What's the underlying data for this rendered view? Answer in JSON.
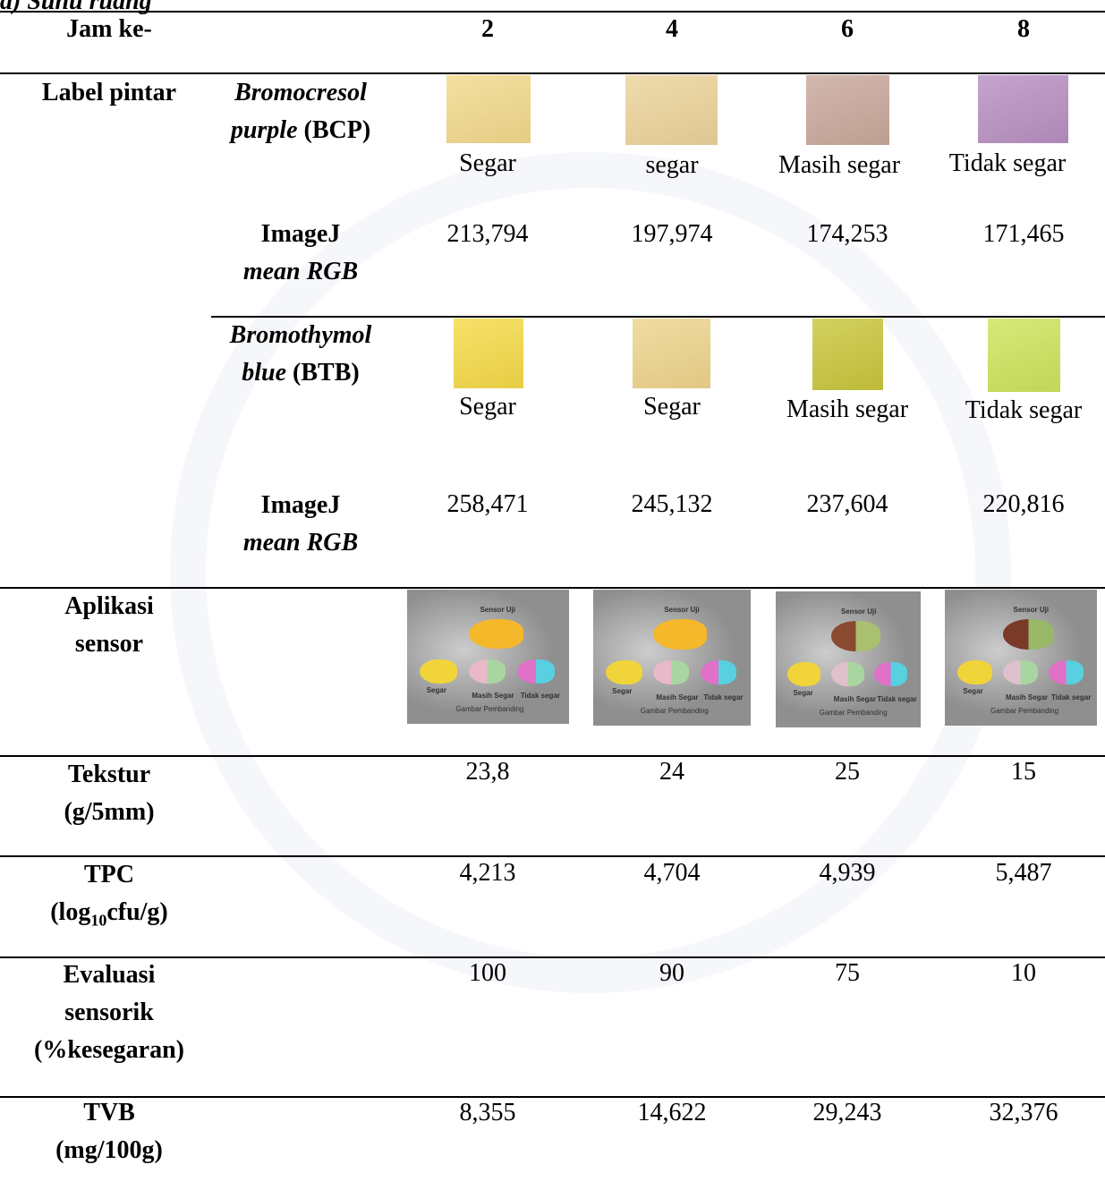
{
  "caption": "a) Suhu ruang",
  "header": {
    "label": "Jam ke-",
    "hours": [
      "2",
      "4",
      "6",
      "8"
    ]
  },
  "label_pintar": {
    "title": "Label pintar",
    "bcp": {
      "name_italic": "Bromocresol",
      "name_italic2": "purple",
      "abbr": "(BCP)",
      "swatch_colors": [
        "#f2d98c",
        "#ecd39a",
        "#c9a89b",
        "#b890c2"
      ],
      "status": [
        "Segar",
        "segar",
        "Masih segar",
        "Tidak segar"
      ],
      "imagej_label1": "ImageJ",
      "imagej_label2": "mean RGB",
      "imagej_values": [
        "213,794",
        "197,974",
        "174,253",
        "171,465"
      ]
    },
    "btb": {
      "name_italic": "Bromothymol",
      "name_italic2": "blue",
      "abbr": "(BTB)",
      "swatch_colors": [
        "#f5da48",
        "#eed48c",
        "#c9c63c",
        "#cde45c"
      ],
      "status": [
        "Segar",
        "Segar",
        "Masih segar",
        "Tidak segar"
      ],
      "imagej_label1": "ImageJ",
      "imagej_label2": "mean RGB",
      "imagej_values": [
        "258,471",
        "245,132",
        "237,604",
        "220,816"
      ]
    }
  },
  "aplikasi": {
    "title1": "Aplikasi",
    "title2": "sensor",
    "sensor_text": {
      "top": "Sensor Uji",
      "segar": "Segar",
      "masih": "Masih Segar",
      "tidak": "Tidak segar",
      "bottom": "Gambar Pembanding"
    }
  },
  "tekstur": {
    "title1": "Tekstur",
    "title2": "(g/5mm)",
    "values": [
      "23,8",
      "24",
      "25",
      "15"
    ]
  },
  "tpc": {
    "title1": "TPC",
    "title2a": "(log",
    "title2sub": "10",
    "title2b": "cfu/g)",
    "values": [
      "4,213",
      "4,704",
      "4,939",
      "5,487"
    ]
  },
  "evaluasi": {
    "title1": "Evaluasi",
    "title2": "sensorik",
    "title3": "(%kesegaran)",
    "values": [
      "100",
      "90",
      "75",
      "10"
    ]
  },
  "tvb": {
    "title1": "TVB",
    "title2": "(mg/100g)",
    "values": [
      "8,355",
      "14,622",
      "29,243",
      "32,376"
    ]
  }
}
